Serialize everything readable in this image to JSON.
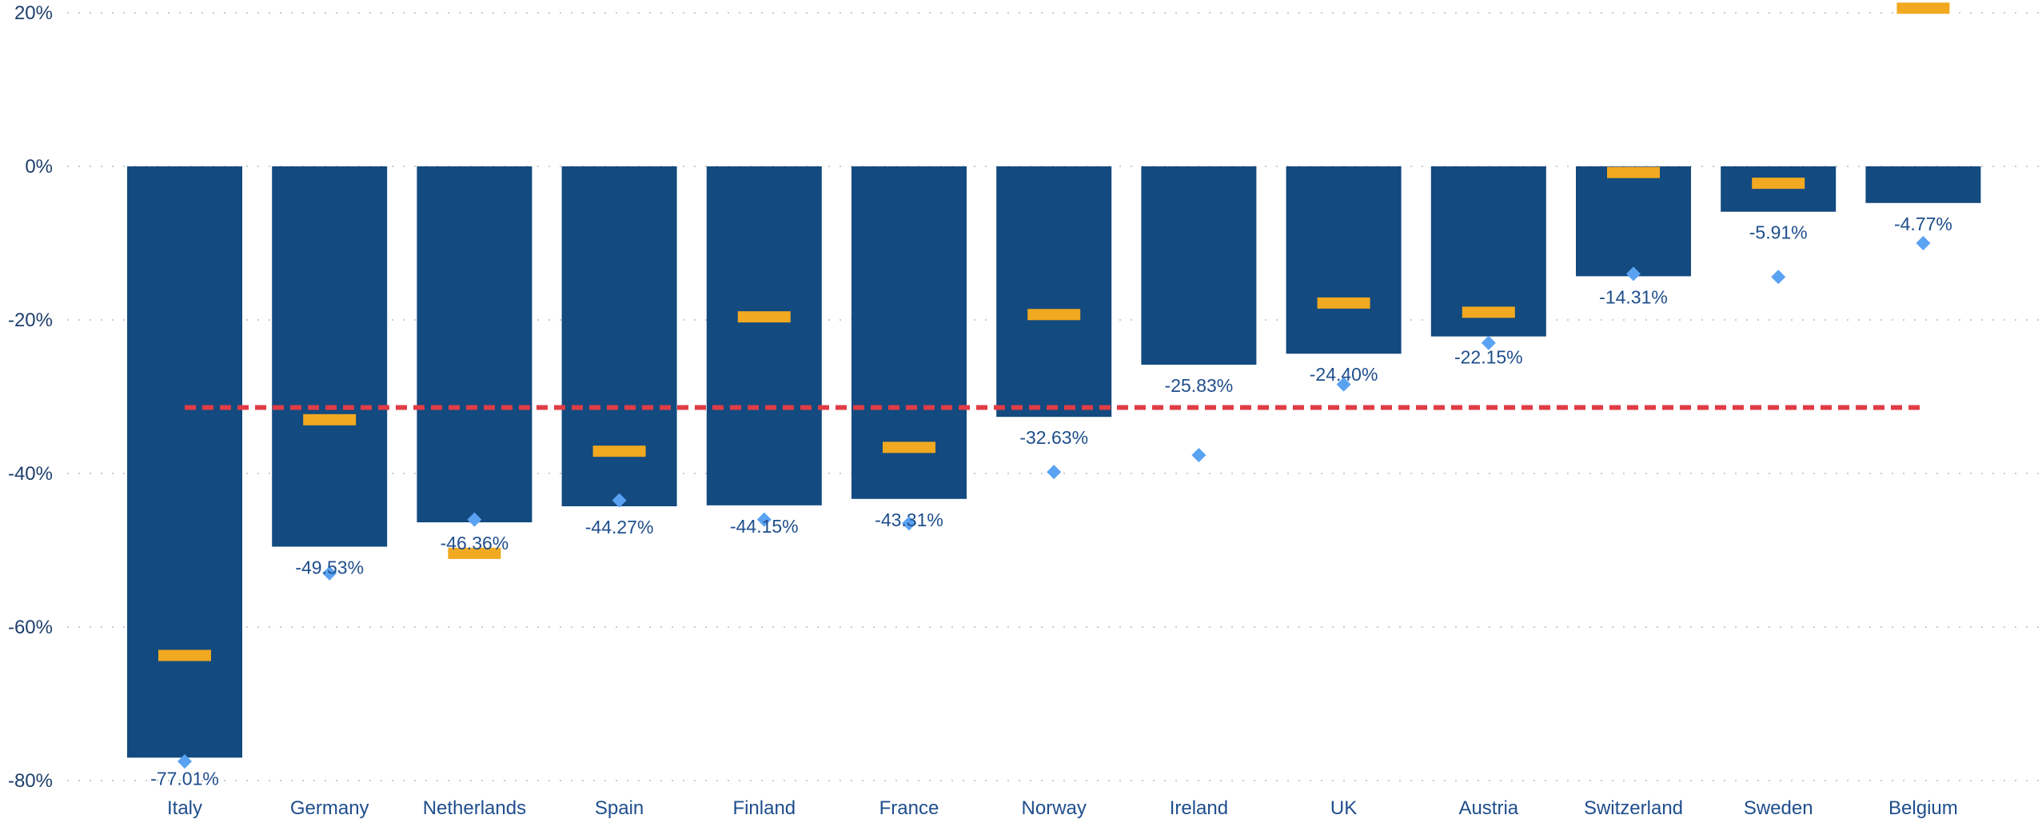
{
  "chart_data": {
    "type": "bar",
    "title": "",
    "xlabel": "",
    "ylabel": "",
    "ylim": [
      -80,
      20
    ],
    "yticks": [
      20,
      0,
      -20,
      -40,
      -60,
      -80
    ],
    "ytick_labels": [
      "20%",
      "0%",
      "-20%",
      "-40%",
      "-60%",
      "-80%"
    ],
    "grid": true,
    "categories": [
      "Italy",
      "Germany",
      "Netherlands",
      "Spain",
      "Finland",
      "France",
      "Norway",
      "Ireland",
      "UK",
      "Austria",
      "Switzerland",
      "Sweden",
      "Belgium"
    ],
    "series": [
      {
        "kind": "bar",
        "color": "#134a7f",
        "values": [
          -77.01,
          -49.53,
          -46.36,
          -44.27,
          -44.15,
          -43.31,
          -32.63,
          -25.83,
          -24.4,
          -22.15,
          -14.31,
          -5.91,
          -4.77
        ],
        "labels": [
          "-77.01%",
          "-49.53%",
          "-46.36%",
          "-44.27%",
          "-44.15%",
          "-43.31%",
          "-32.63%",
          "-25.83%",
          "-24.40%",
          "-22.15%",
          "-14.31%",
          "-5.91%",
          "-4.77%"
        ]
      },
      {
        "kind": "marker-dash",
        "color": "#f0a920",
        "values": [
          -63.7,
          -33.0,
          -50.4,
          -37.1,
          -19.6,
          -36.6,
          -19.3,
          null,
          -17.8,
          -19.0,
          -0.8,
          -2.2,
          20.6
        ]
      },
      {
        "kind": "marker-diamond",
        "color": "#5aa2f2",
        "values": [
          -77.5,
          -53.0,
          -46.0,
          -43.5,
          -46.0,
          -46.5,
          -39.8,
          -37.6,
          -28.4,
          -23.0,
          -14.0,
          -14.4,
          -10.0
        ]
      },
      {
        "kind": "reference-line",
        "color": "#e03c45",
        "value": -31.4
      }
    ]
  }
}
